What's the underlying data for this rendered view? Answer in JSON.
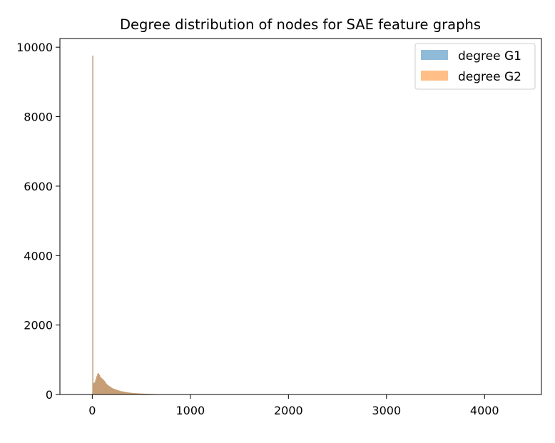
{
  "chart_data": {
    "type": "bar",
    "title": "Degree distribution of nodes for SAE feature graphs",
    "xlabel": "",
    "ylabel": "",
    "xlim": [
      -330,
      4580
    ],
    "ylim": [
      0,
      10250
    ],
    "xticks": [
      0,
      1000,
      2000,
      3000,
      4000
    ],
    "xtick_labels": [
      "0",
      "1000",
      "2000",
      "3000",
      "4000"
    ],
    "yticks": [
      0,
      2000,
      4000,
      6000,
      8000,
      10000
    ],
    "ytick_labels": [
      "0",
      "2000",
      "4000",
      "6000",
      "8000",
      "10000"
    ],
    "grid": false,
    "legend_position": "top-right",
    "bin_width": 10,
    "series": [
      {
        "name": "degree G1",
        "color": "#1f77b4",
        "opacity": 0.5,
        "bin_starts": [
          0,
          10,
          20,
          30,
          40,
          50,
          60,
          70,
          80,
          90,
          100,
          110,
          120,
          130,
          140,
          150,
          160,
          170,
          180,
          190,
          200,
          210,
          220,
          230,
          240,
          250,
          260,
          270,
          280,
          290,
          300,
          310,
          320,
          330,
          340,
          350,
          360,
          370,
          380,
          390,
          400,
          410,
          420,
          430,
          440,
          450,
          460,
          470,
          480,
          490,
          500,
          510,
          520,
          530,
          540,
          550,
          560,
          570,
          580,
          590,
          600,
          610,
          620,
          630,
          640,
          650,
          660,
          670,
          680,
          690,
          700
        ],
        "counts": [
          9760,
          330,
          360,
          430,
          520,
          590,
          610,
          560,
          500,
          470,
          450,
          420,
          390,
          350,
          310,
          280,
          260,
          240,
          220,
          200,
          180,
          170,
          160,
          150,
          140,
          130,
          120,
          110,
          100,
          95,
          90,
          85,
          80,
          75,
          70,
          65,
          60,
          56,
          52,
          48,
          45,
          42,
          40,
          38,
          36,
          34,
          32,
          30,
          28,
          26,
          25,
          24,
          23,
          22,
          21,
          20,
          19,
          18,
          17,
          16,
          15,
          14,
          13,
          12,
          11,
          10,
          9,
          9,
          8,
          8,
          7
        ]
      },
      {
        "name": "degree G2",
        "color": "#ff7f0e",
        "opacity": 0.5,
        "bin_starts": [
          0,
          10,
          20,
          30,
          40,
          50,
          60,
          70,
          80,
          90,
          100,
          110,
          120,
          130,
          140,
          150,
          160,
          170,
          180,
          190,
          200,
          210,
          220,
          230,
          240,
          250,
          260,
          270,
          280,
          290,
          300,
          310,
          320,
          330,
          340,
          350,
          360,
          370,
          380,
          390,
          400,
          410,
          420,
          430,
          440,
          450,
          460,
          470,
          480,
          490,
          500,
          510,
          520,
          530,
          540,
          550,
          560,
          570,
          580,
          590,
          600,
          610,
          620,
          630,
          640,
          650,
          660,
          670,
          680,
          690,
          700
        ],
        "counts": [
          9750,
          320,
          350,
          440,
          530,
          600,
          620,
          570,
          510,
          480,
          455,
          425,
          395,
          355,
          315,
          285,
          262,
          242,
          222,
          202,
          182,
          172,
          162,
          152,
          142,
          132,
          122,
          112,
          102,
          96,
          91,
          86,
          81,
          76,
          71,
          66,
          61,
          57,
          53,
          49,
          46,
          43,
          41,
          39,
          37,
          35,
          33,
          31,
          29,
          27,
          26,
          25,
          24,
          23,
          22,
          21,
          20,
          19,
          18,
          17,
          16,
          15,
          14,
          13,
          12,
          11,
          10,
          9,
          9,
          8,
          8
        ]
      }
    ]
  }
}
